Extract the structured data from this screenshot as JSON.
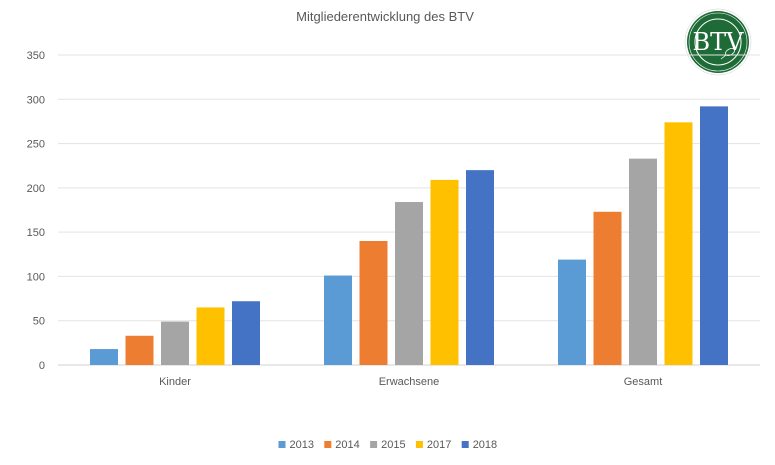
{
  "chart_data": {
    "type": "bar",
    "title": "Mitgliederentwicklung des BTV",
    "xlabel": "",
    "ylabel": "",
    "categories": [
      "Kinder",
      "Erwachsene",
      "Gesamt"
    ],
    "ylim": [
      0,
      350
    ],
    "yticks": [
      0,
      50,
      100,
      150,
      200,
      250,
      300,
      350
    ],
    "grid": true,
    "legend_position": "bottom",
    "series": [
      {
        "name": "2013",
        "color": "#5b9bd5",
        "values": [
          18,
          101,
          119
        ]
      },
      {
        "name": "2014",
        "color": "#ed7d31",
        "values": [
          33,
          140,
          173
        ]
      },
      {
        "name": "2015",
        "color": "#a5a5a5",
        "values": [
          49,
          184,
          233
        ]
      },
      {
        "name": "2017",
        "color": "#ffc000",
        "values": [
          65,
          209,
          274
        ]
      },
      {
        "name": "2018",
        "color": "#4472c4",
        "values": [
          72,
          220,
          292
        ]
      }
    ]
  },
  "logo": {
    "text": "BTV",
    "icon": "btv-club-logo-icon",
    "color": "#1e6b37"
  }
}
